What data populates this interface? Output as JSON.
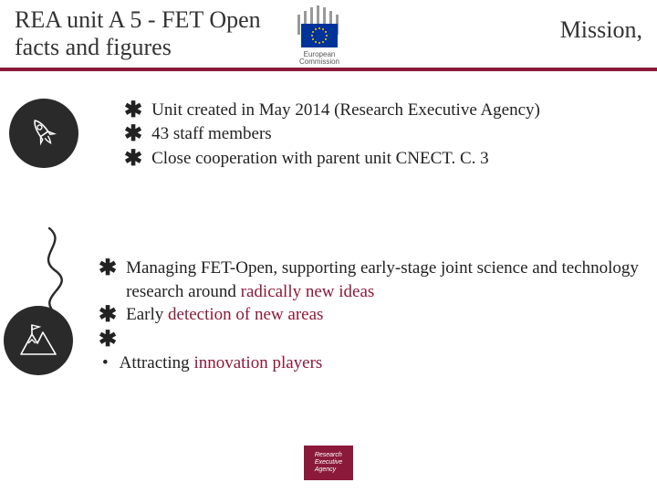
{
  "header": {
    "title_left": "REA unit A 5 - FET Open facts and figures",
    "title_right": "Mission,",
    "logo_label_line1": "European",
    "logo_label_line2": "Commission",
    "header_rule_color": "#8b1a3a",
    "title_color": "#333333",
    "title_fontsize": 26
  },
  "section1": {
    "icon_name": "rocket-icon",
    "items": [
      "Unit created in May 2014 (Research Executive Agency)",
      "43 staff members",
      "Close cooperation with parent unit CNECT. C. 3"
    ]
  },
  "section2": {
    "icon_name": "mountain-flag-icon",
    "items": [
      {
        "bullet": "star",
        "segments": [
          {
            "t": "Managing FET-Open, supporting early-stage joint science and technology research around ",
            "hl": false
          },
          {
            "t": "radically new ideas",
            "hl": true
          }
        ]
      },
      {
        "bullet": "star",
        "segments": [
          {
            "t": "Early ",
            "hl": false
          },
          {
            "t": "detection of new areas",
            "hl": true
          }
        ]
      },
      {
        "bullet": "star",
        "segments": []
      },
      {
        "bullet": "dot",
        "segments": [
          {
            "t": "Attracting ",
            "hl": false
          },
          {
            "t": "innovation players",
            "hl": true
          }
        ]
      }
    ]
  },
  "footer": {
    "badge_line1": "Research",
    "badge_line2": "Executive",
    "badge_line3": "Agency",
    "badge_bg": "#8b1a3a"
  },
  "style": {
    "body_fontsize": 19,
    "body_color": "#222222",
    "highlight_color": "#8b1a3a",
    "icon_circle_bg": "#2a2a2a",
    "background": "#ffffff"
  }
}
